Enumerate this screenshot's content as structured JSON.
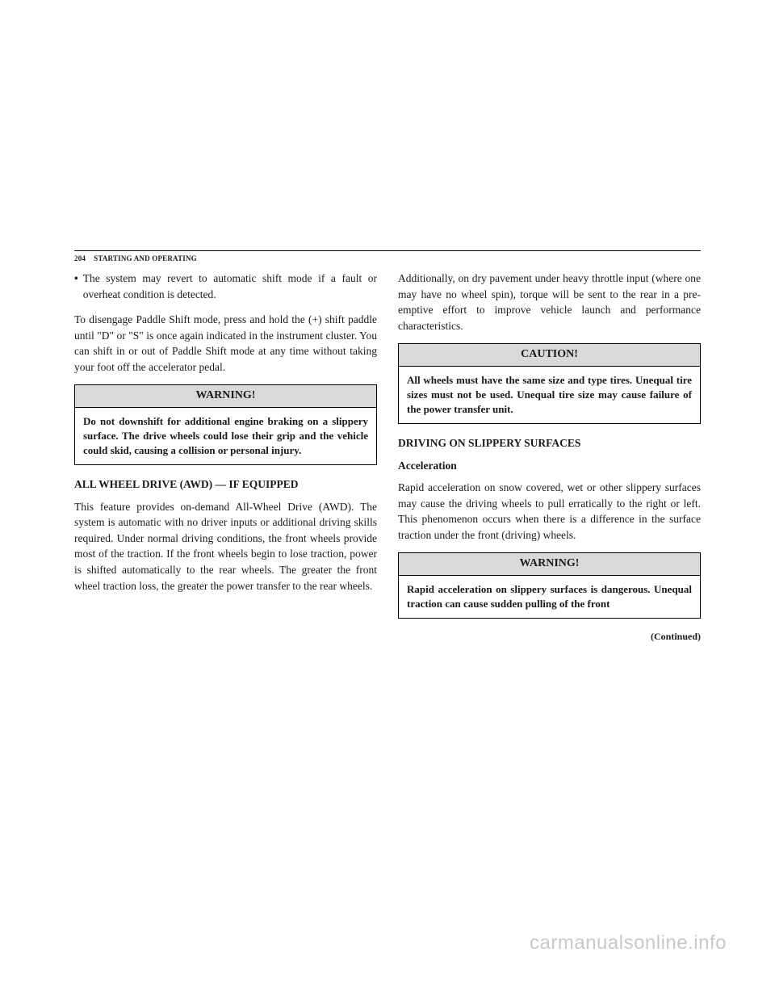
{
  "header": {
    "page_num": "204",
    "section": "STARTING AND OPERATING"
  },
  "left": {
    "bullet1": "The system may revert to automatic shift mode if a fault or overheat condition is detected.",
    "para1": "To disengage Paddle Shift mode, press and hold the (+) shift paddle until \"D\" or \"S\" is once again indicated in the instrument cluster. You can shift in or out of Paddle Shift mode at any time without taking your foot off the accelerator pedal.",
    "warn_head": "WARNING!",
    "warn_body": "Do not downshift for additional engine braking on a slippery surface. The drive wheels could lose their grip and the vehicle could skid, causing a collision or personal injury.",
    "awd_head": "ALL WHEEL DRIVE (AWD) — IF EQUIPPED",
    "awd_para": "This feature provides on-demand All-Wheel Drive (AWD). The system is automatic with no driver inputs or additional driving skills required. Under normal driving conditions, the front wheels provide most of the traction. If the front wheels begin to lose traction, power is shifted automatically to the rear wheels. The greater the front wheel traction loss, the greater the power transfer to the rear wheels."
  },
  "right": {
    "para1": "Additionally, on dry pavement under heavy throttle input (where one may have no wheel spin), torque will be sent to the rear in a pre-emptive effort to improve vehicle launch and performance characteristics.",
    "caution_head": "CAUTION!",
    "caution_body": "All wheels must have the same size and type tires. Unequal tire sizes must not be used. Unequal tire size may cause failure of the power transfer unit.",
    "slippery_head": "DRIVING ON SLIPPERY SURFACES",
    "accel_head": "Acceleration",
    "accel_para": "Rapid acceleration on snow covered, wet or other slippery surfaces may cause the driving wheels to pull erratically to the right or left. This phenomenon occurs when there is a difference in the surface traction under the front (driving) wheels.",
    "warn2_head": "WARNING!",
    "warn2_body": "Rapid acceleration on slippery surfaces is dangerous. Unequal traction can cause sudden pulling of the front",
    "continued": "(Continued)"
  },
  "watermark": "carmanualsonline.info"
}
